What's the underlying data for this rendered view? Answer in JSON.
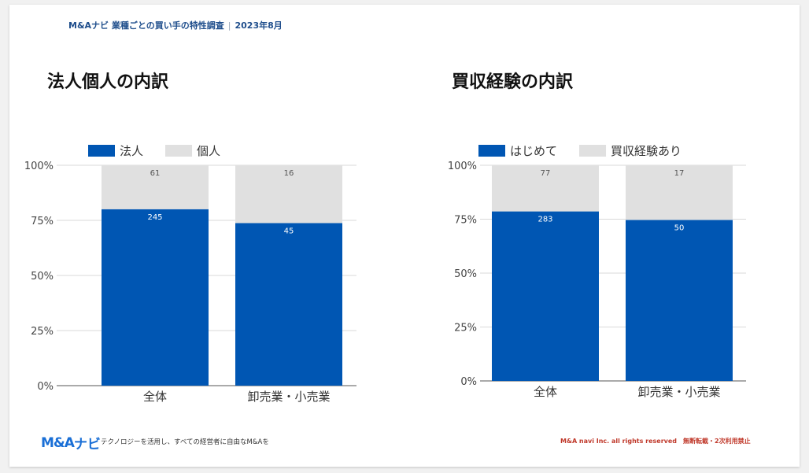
{
  "header": {
    "brand": "M&Aナビ 業種ごとの買い手の特性調査",
    "date": "2023年8月"
  },
  "colors": {
    "primary": "#0056b3",
    "secondary": "#e0e0e0",
    "header_text": "#1f4e8c",
    "copyright": "#c0392b"
  },
  "charts": {
    "left": {
      "title": "法人個人の内訳"
    },
    "right": {
      "title": "買収経験の内訳"
    }
  },
  "chart_data": [
    {
      "type": "bar",
      "stacked": "percent",
      "title": "法人個人の内訳",
      "categories": [
        "全体",
        "卸売業・小売業"
      ],
      "series": [
        {
          "name": "法人",
          "values": [
            245,
            45
          ],
          "color": "#0056b3"
        },
        {
          "name": "個人",
          "values": [
            61,
            16
          ],
          "color": "#e0e0e0"
        }
      ],
      "yticks": [
        "0%",
        "25%",
        "50%",
        "75%",
        "100%"
      ],
      "ylim": [
        0,
        100
      ],
      "legend": "top-left",
      "grid": true
    },
    {
      "type": "bar",
      "stacked": "percent",
      "title": "買収経験の内訳",
      "categories": [
        "全体",
        "卸売業・小売業"
      ],
      "series": [
        {
          "name": "はじめて",
          "values": [
            283,
            50
          ],
          "color": "#0056b3"
        },
        {
          "name": "買収経験あり",
          "values": [
            77,
            17
          ],
          "color": "#e0e0e0"
        }
      ],
      "yticks": [
        "0%",
        "25%",
        "50%",
        "75%",
        "100%"
      ],
      "ylim": [
        0,
        100
      ],
      "legend": "top-left",
      "grid": true
    }
  ],
  "footer": {
    "logo_text_ma": "M&A",
    "logo_text_navi": "ナビ",
    "tagline": "テクノロジーを活用し、すべての経営者に自由なM&Aを",
    "copyright": "M&A navi Inc. all rights reserved　無断転載・2次利用禁止"
  }
}
